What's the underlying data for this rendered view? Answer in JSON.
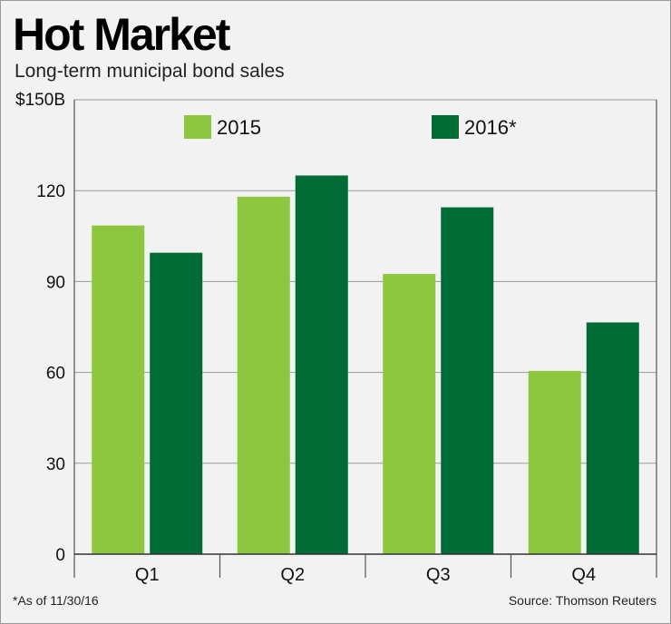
{
  "header": {
    "title": "Hot Market",
    "subtitle": "Long-term municipal bond sales"
  },
  "footer": {
    "footnote": "*As of 11/30/16",
    "source": "Source: Thomson Reuters"
  },
  "chart_data": {
    "type": "bar",
    "title": "Hot Market",
    "subtitle": "Long-term municipal bond sales",
    "categories": [
      "Q1",
      "Q2",
      "Q3",
      "Q4"
    ],
    "series": [
      {
        "name": "2015",
        "color": "#8dc63f",
        "values": [
          108.5,
          118,
          92.5,
          60.5
        ]
      },
      {
        "name": "2016*",
        "color": "#006b35",
        "values": [
          99.5,
          125,
          114.5,
          76.5
        ]
      }
    ],
    "yticks": [
      {
        "value": 0,
        "label": "0"
      },
      {
        "value": 30,
        "label": "30"
      },
      {
        "value": 60,
        "label": "60"
      },
      {
        "value": 90,
        "label": "90"
      },
      {
        "value": 120,
        "label": "120"
      },
      {
        "value": 150,
        "label": "$150B"
      }
    ],
    "ylim": [
      0,
      150
    ],
    "grid": true,
    "legend_position": "top"
  }
}
